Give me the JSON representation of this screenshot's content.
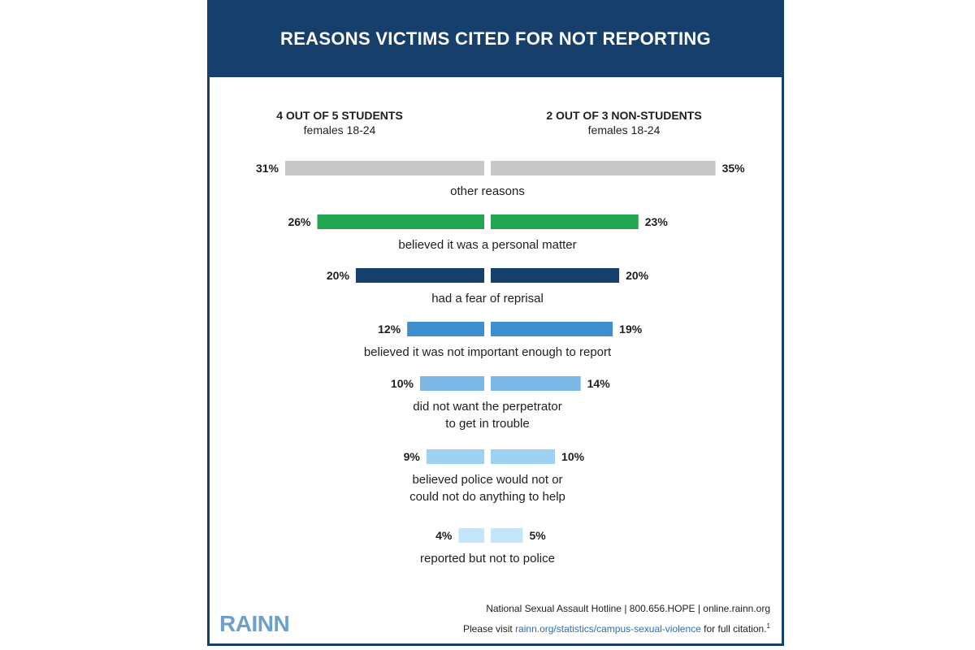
{
  "header": {
    "title": "REASONS VICTIMS CITED FOR NOT REPORTING"
  },
  "columns": {
    "left": {
      "title": "4 OUT OF 5 STUDENTS",
      "subtitle": "females 18-24"
    },
    "right": {
      "title": "2 OUT OF 3 NON-STUDENTS",
      "subtitle": "females 18-24"
    }
  },
  "chart_data": {
    "type": "bar",
    "orientation": "horizontal-butterfly",
    "series": [
      {
        "name": "4 OUT OF 5 STUDENTS",
        "values": [
          31,
          26,
          20,
          12,
          10,
          9,
          4
        ]
      },
      {
        "name": "2 OUT OF 3 NON-STUDENTS",
        "values": [
          35,
          23,
          20,
          19,
          14,
          10,
          5
        ]
      }
    ],
    "categories": [
      "other reasons",
      "believed it was a personal matter",
      "had a fear of reprisal",
      "believed it was not important enough to report",
      "did not want the perpetrator\nto get in trouble",
      "believed police would not or\ncould not do anything to help",
      "reported but not to police"
    ],
    "value_labels_left": [
      "31%",
      "26%",
      "20%",
      "12%",
      "10%",
      "9%",
      "4%"
    ],
    "value_labels_right": [
      "35%",
      "23%",
      "20%",
      "19%",
      "14%",
      "10%",
      "5%"
    ],
    "colors": [
      "#c8c8c8",
      "#22a64f",
      "#173f6b",
      "#3f8fcf",
      "#7db7e6",
      "#9fd2f2",
      "#c4e5f7"
    ],
    "ylim": [
      0,
      35
    ]
  },
  "footer": {
    "logo": "RAINN",
    "hotline": "National Sexual Assault Hotline | 800.656.HOPE | online.rainn.org",
    "visit_prefix": "Please visit",
    "visit_link": "rainn.org/statistics/campus-sexual-violence",
    "visit_suffix": "for full citation.",
    "citation_mark": "1"
  }
}
